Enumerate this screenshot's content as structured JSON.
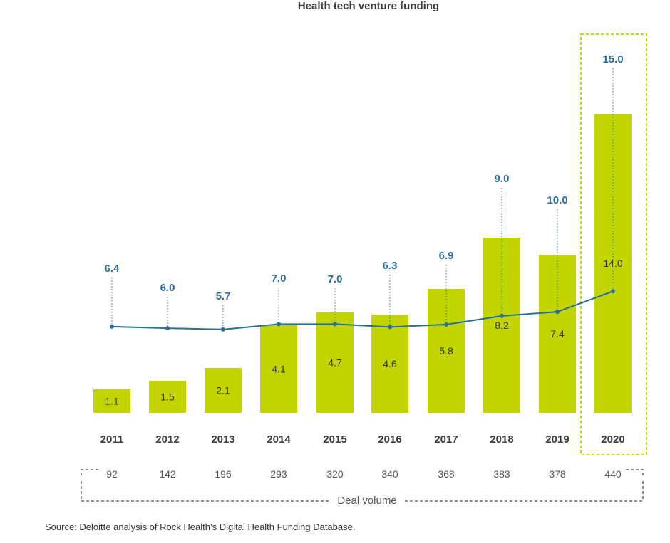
{
  "chart_data": {
    "type": "bar",
    "title": "Health tech venture funding",
    "categories": [
      "2011",
      "2012",
      "2013",
      "2014",
      "2015",
      "2016",
      "2017",
      "2018",
      "2019",
      "2020"
    ],
    "series": [
      {
        "type": "bar",
        "values": [
          1.1,
          1.5,
          2.1,
          4.1,
          4.7,
          4.6,
          5.8,
          8.2,
          7.4,
          14.0
        ],
        "labels": [
          "1.1",
          "1.5",
          "2.1",
          "4.1",
          "4.7",
          "4.6",
          "5.8",
          "8.2",
          "7.4",
          "14.0"
        ]
      },
      {
        "type": "line",
        "values": [
          6.4,
          6.0,
          5.7,
          7.0,
          7.0,
          6.3,
          6.9,
          9.0,
          10.0,
          15.0
        ],
        "labels": [
          "6.4",
          "6.0",
          "5.7",
          "7.0",
          "7.0",
          "6.3",
          "6.9",
          "9.0",
          "10.0",
          "15.0"
        ]
      }
    ],
    "deal_volume": {
      "label": "Deal volume",
      "values": [
        "92",
        "142",
        "196",
        "293",
        "320",
        "340",
        "368",
        "383",
        "378",
        "440"
      ]
    },
    "highlight_category": "2020",
    "grid": false,
    "colors": {
      "bar": "#c3d500",
      "line": "#2b6f9a",
      "highlight_border": "#c3d500",
      "bracket": "#666666"
    }
  },
  "source": "Source: Deloitte analysis of Rock Health’s Digital Health Funding Database."
}
